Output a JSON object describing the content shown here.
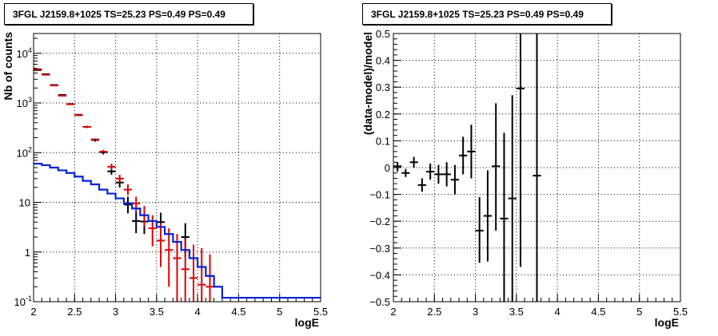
{
  "chart_data": [
    {
      "type": "histogram-errorbar",
      "title": "3FGL J2159.8+1025 TS=25.23 PS=0.49 PS=0.49",
      "xlabel": "logE",
      "ylabel": "Nb of counts",
      "xlim": [
        2,
        5.5
      ],
      "ylim": [
        0.1,
        25000
      ],
      "y_scale": "log",
      "grid": true,
      "x_ticks": [
        "2",
        "2.5",
        "3",
        "3.5",
        "4",
        "4.5",
        "5",
        "5.5"
      ],
      "y_ticks": [
        {
          "value": 0.1,
          "base": "10",
          "exp": "-1"
        },
        {
          "value": 1,
          "base": "1",
          "exp": ""
        },
        {
          "value": 10,
          "base": "10",
          "exp": ""
        },
        {
          "value": 100,
          "base": "10",
          "exp": "2"
        },
        {
          "value": 1000,
          "base": "10",
          "exp": "3"
        },
        {
          "value": 10000,
          "base": "10",
          "exp": "4"
        }
      ],
      "series": [
        {
          "color": "#000000",
          "points": [
            {
              "x": 2.05,
              "y": 4600,
              "lo": 4500,
              "hi": 4700
            },
            {
              "x": 2.15,
              "y": 3800,
              "lo": 3700,
              "hi": 3900
            },
            {
              "x": 2.25,
              "y": 2300,
              "lo": 2220,
              "hi": 2380
            },
            {
              "x": 2.35,
              "y": 1450,
              "lo": 1400,
              "hi": 1500
            },
            {
              "x": 2.45,
              "y": 950,
              "lo": 910,
              "hi": 990
            },
            {
              "x": 2.55,
              "y": 570,
              "lo": 545,
              "hi": 595
            },
            {
              "x": 2.65,
              "y": 330,
              "lo": 312,
              "hi": 348
            },
            {
              "x": 2.75,
              "y": 180,
              "lo": 167,
              "hi": 193
            },
            {
              "x": 2.85,
              "y": 102,
              "lo": 92,
              "hi": 112
            },
            {
              "x": 2.95,
              "y": 42,
              "lo": 36,
              "hi": 49
            },
            {
              "x": 3.05,
              "y": 25,
              "lo": 20,
              "hi": 30
            },
            {
              "x": 3.15,
              "y": 9,
              "lo": 6,
              "hi": 13
            },
            {
              "x": 3.25,
              "y": 4.2,
              "lo": 2.4,
              "hi": 6.5
            },
            {
              "x": 3.35,
              "y": 4.1,
              "lo": 2.3,
              "hi": 6.3
            },
            {
              "x": 3.55,
              "y": 4.0,
              "lo": 2.2,
              "hi": 6.2
            },
            {
              "x": 3.85,
              "y": 2.0,
              "lo": 0.8,
              "hi": 3.8
            }
          ]
        },
        {
          "color": "#e00000",
          "points": [
            {
              "x": 2.05,
              "y": 4800
            },
            {
              "x": 2.15,
              "y": 3700
            },
            {
              "x": 2.25,
              "y": 2250
            },
            {
              "x": 2.35,
              "y": 1400
            },
            {
              "x": 2.45,
              "y": 940
            },
            {
              "x": 2.55,
              "y": 580
            },
            {
              "x": 2.65,
              "y": 330
            },
            {
              "x": 2.75,
              "y": 185
            },
            {
              "x": 2.85,
              "y": 105
            },
            {
              "x": 2.95,
              "y": 52,
              "lo": 45,
              "hi": 60
            },
            {
              "x": 3.05,
              "y": 30,
              "lo": 25,
              "hi": 36
            },
            {
              "x": 3.15,
              "y": 18,
              "lo": 14,
              "hi": 23
            },
            {
              "x": 3.25,
              "y": 9.5,
              "lo": 6.5,
              "hi": 13
            },
            {
              "x": 3.35,
              "y": 5.5,
              "lo": 3.3,
              "hi": 8.5
            },
            {
              "x": 3.45,
              "y": 3.0,
              "lo": 1.3,
              "hi": 5.5
            },
            {
              "x": 3.55,
              "y": 1.7,
              "lo": 0.5,
              "hi": 3.8
            },
            {
              "x": 3.65,
              "y": 1.1,
              "lo": 0.2,
              "hi": 3.0
            },
            {
              "x": 3.75,
              "y": 0.75,
              "lo": 0.1,
              "hi": 2.3
            },
            {
              "x": 3.85,
              "y": 0.45,
              "lo": 0.1,
              "hi": 1.8
            },
            {
              "x": 3.95,
              "y": 0.3,
              "lo": 0.1,
              "hi": 1.4
            },
            {
              "x": 4.05,
              "y": 0.22,
              "lo": 0.1,
              "hi": 1.2
            },
            {
              "x": 4.15,
              "y": 0.2,
              "lo": 0.1,
              "hi": 0.9
            }
          ]
        },
        {
          "color": "#0022dd",
          "style": "step",
          "edges": [
            2.0,
            2.1,
            2.2,
            2.3,
            2.4,
            2.5,
            2.6,
            2.7,
            2.8,
            2.9,
            3.0,
            3.1,
            3.2,
            3.3,
            3.4,
            3.5,
            3.6,
            3.7,
            3.8,
            3.9,
            4.0,
            4.1,
            4.2,
            4.3,
            5.5
          ],
          "values": [
            60,
            56,
            50,
            44,
            39,
            33,
            27,
            23,
            18,
            15,
            12,
            9.5,
            7.5,
            5.5,
            4.2,
            3.2,
            2.3,
            1.6,
            1.1,
            0.75,
            0.5,
            0.33,
            0.2,
            0.12
          ]
        }
      ]
    },
    {
      "type": "errorbar",
      "title": "3FGL J2159.8+1025 TS=25.23 PS=0.49 PS=0.49",
      "xlabel": "logE",
      "ylabel": "(data-model)/model",
      "xlim": [
        2,
        5.5
      ],
      "ylim": [
        -0.5,
        0.5
      ],
      "grid": true,
      "x_ticks": [
        "2",
        "2.5",
        "3",
        "3.5",
        "4",
        "4.5",
        "5",
        "5.5"
      ],
      "y_ticks": [
        "−0.5",
        "−0.4",
        "−0.3",
        "−0.2",
        "−0.1",
        "0",
        "0.1",
        "0.2",
        "0.3",
        "0.4",
        "0.5"
      ],
      "y_tick_values": [
        -0.5,
        -0.4,
        -0.3,
        -0.2,
        -0.1,
        0,
        0.1,
        0.2,
        0.3,
        0.4,
        0.5
      ],
      "series": [
        {
          "color": "#000000",
          "points": [
            {
              "x": 2.05,
              "y": 0.005,
              "lo": -0.015,
              "hi": 0.02
            },
            {
              "x": 2.15,
              "y": -0.02,
              "lo": -0.035,
              "hi": -0.005
            },
            {
              "x": 2.25,
              "y": 0.02,
              "lo": 0.0,
              "hi": 0.04
            },
            {
              "x": 2.35,
              "y": -0.065,
              "lo": -0.09,
              "hi": -0.04
            },
            {
              "x": 2.45,
              "y": -0.015,
              "lo": -0.045,
              "hi": 0.015
            },
            {
              "x": 2.55,
              "y": -0.025,
              "lo": -0.06,
              "hi": 0.01
            },
            {
              "x": 2.65,
              "y": -0.025,
              "lo": -0.07,
              "hi": 0.02
            },
            {
              "x": 2.75,
              "y": -0.045,
              "lo": -0.1,
              "hi": 0.01
            },
            {
              "x": 2.85,
              "y": 0.045,
              "lo": -0.025,
              "hi": 0.115
            },
            {
              "x": 2.95,
              "y": 0.06,
              "lo": -0.04,
              "hi": 0.16
            },
            {
              "x": 3.05,
              "y": -0.235,
              "lo": -0.355,
              "hi": -0.11
            },
            {
              "x": 3.15,
              "y": -0.18,
              "lo": -0.35,
              "hi": -0.01
            },
            {
              "x": 3.25,
              "y": 0.005,
              "lo": -0.235,
              "hi": 0.24
            },
            {
              "x": 3.35,
              "y": -0.19,
              "lo": -0.5,
              "hi": 0.13
            },
            {
              "x": 3.45,
              "y": -0.115,
              "lo": -0.5,
              "hi": 0.27
            },
            {
              "x": 3.55,
              "y": 0.295,
              "lo": -0.37,
              "hi": 0.5
            },
            {
              "x": 3.75,
              "y": -0.03,
              "lo": -0.5,
              "hi": 0.5
            }
          ]
        }
      ]
    }
  ]
}
